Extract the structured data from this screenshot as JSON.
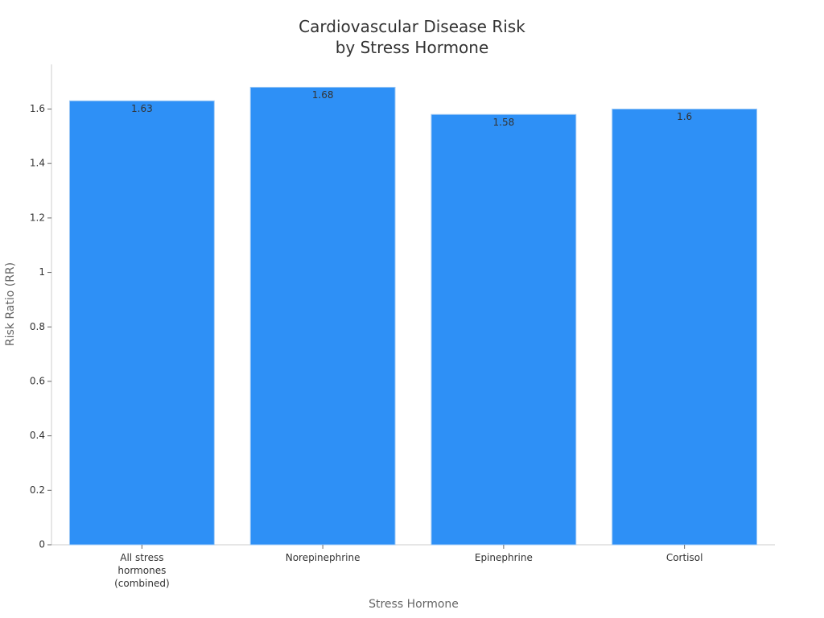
{
  "chart_data": {
    "type": "bar",
    "title": "Cardiovascular Disease Risk by Stress Hormone",
    "x_label": "Stress Hormone",
    "y_label": "Risk Ratio (RR)",
    "categories": [
      "All stress hormones (combined)",
      "Norepinephrine",
      "Epinephrine",
      "Cortisol"
    ],
    "values": [
      1.63,
      1.68,
      1.58,
      1.6
    ],
    "color": "#2e90f6",
    "ylim": [
      0,
      1.764
    ],
    "yticks": [
      0,
      0.2,
      0.4,
      0.6,
      0.8,
      1,
      1.2,
      1.4,
      1.6
    ],
    "grid": false
  }
}
